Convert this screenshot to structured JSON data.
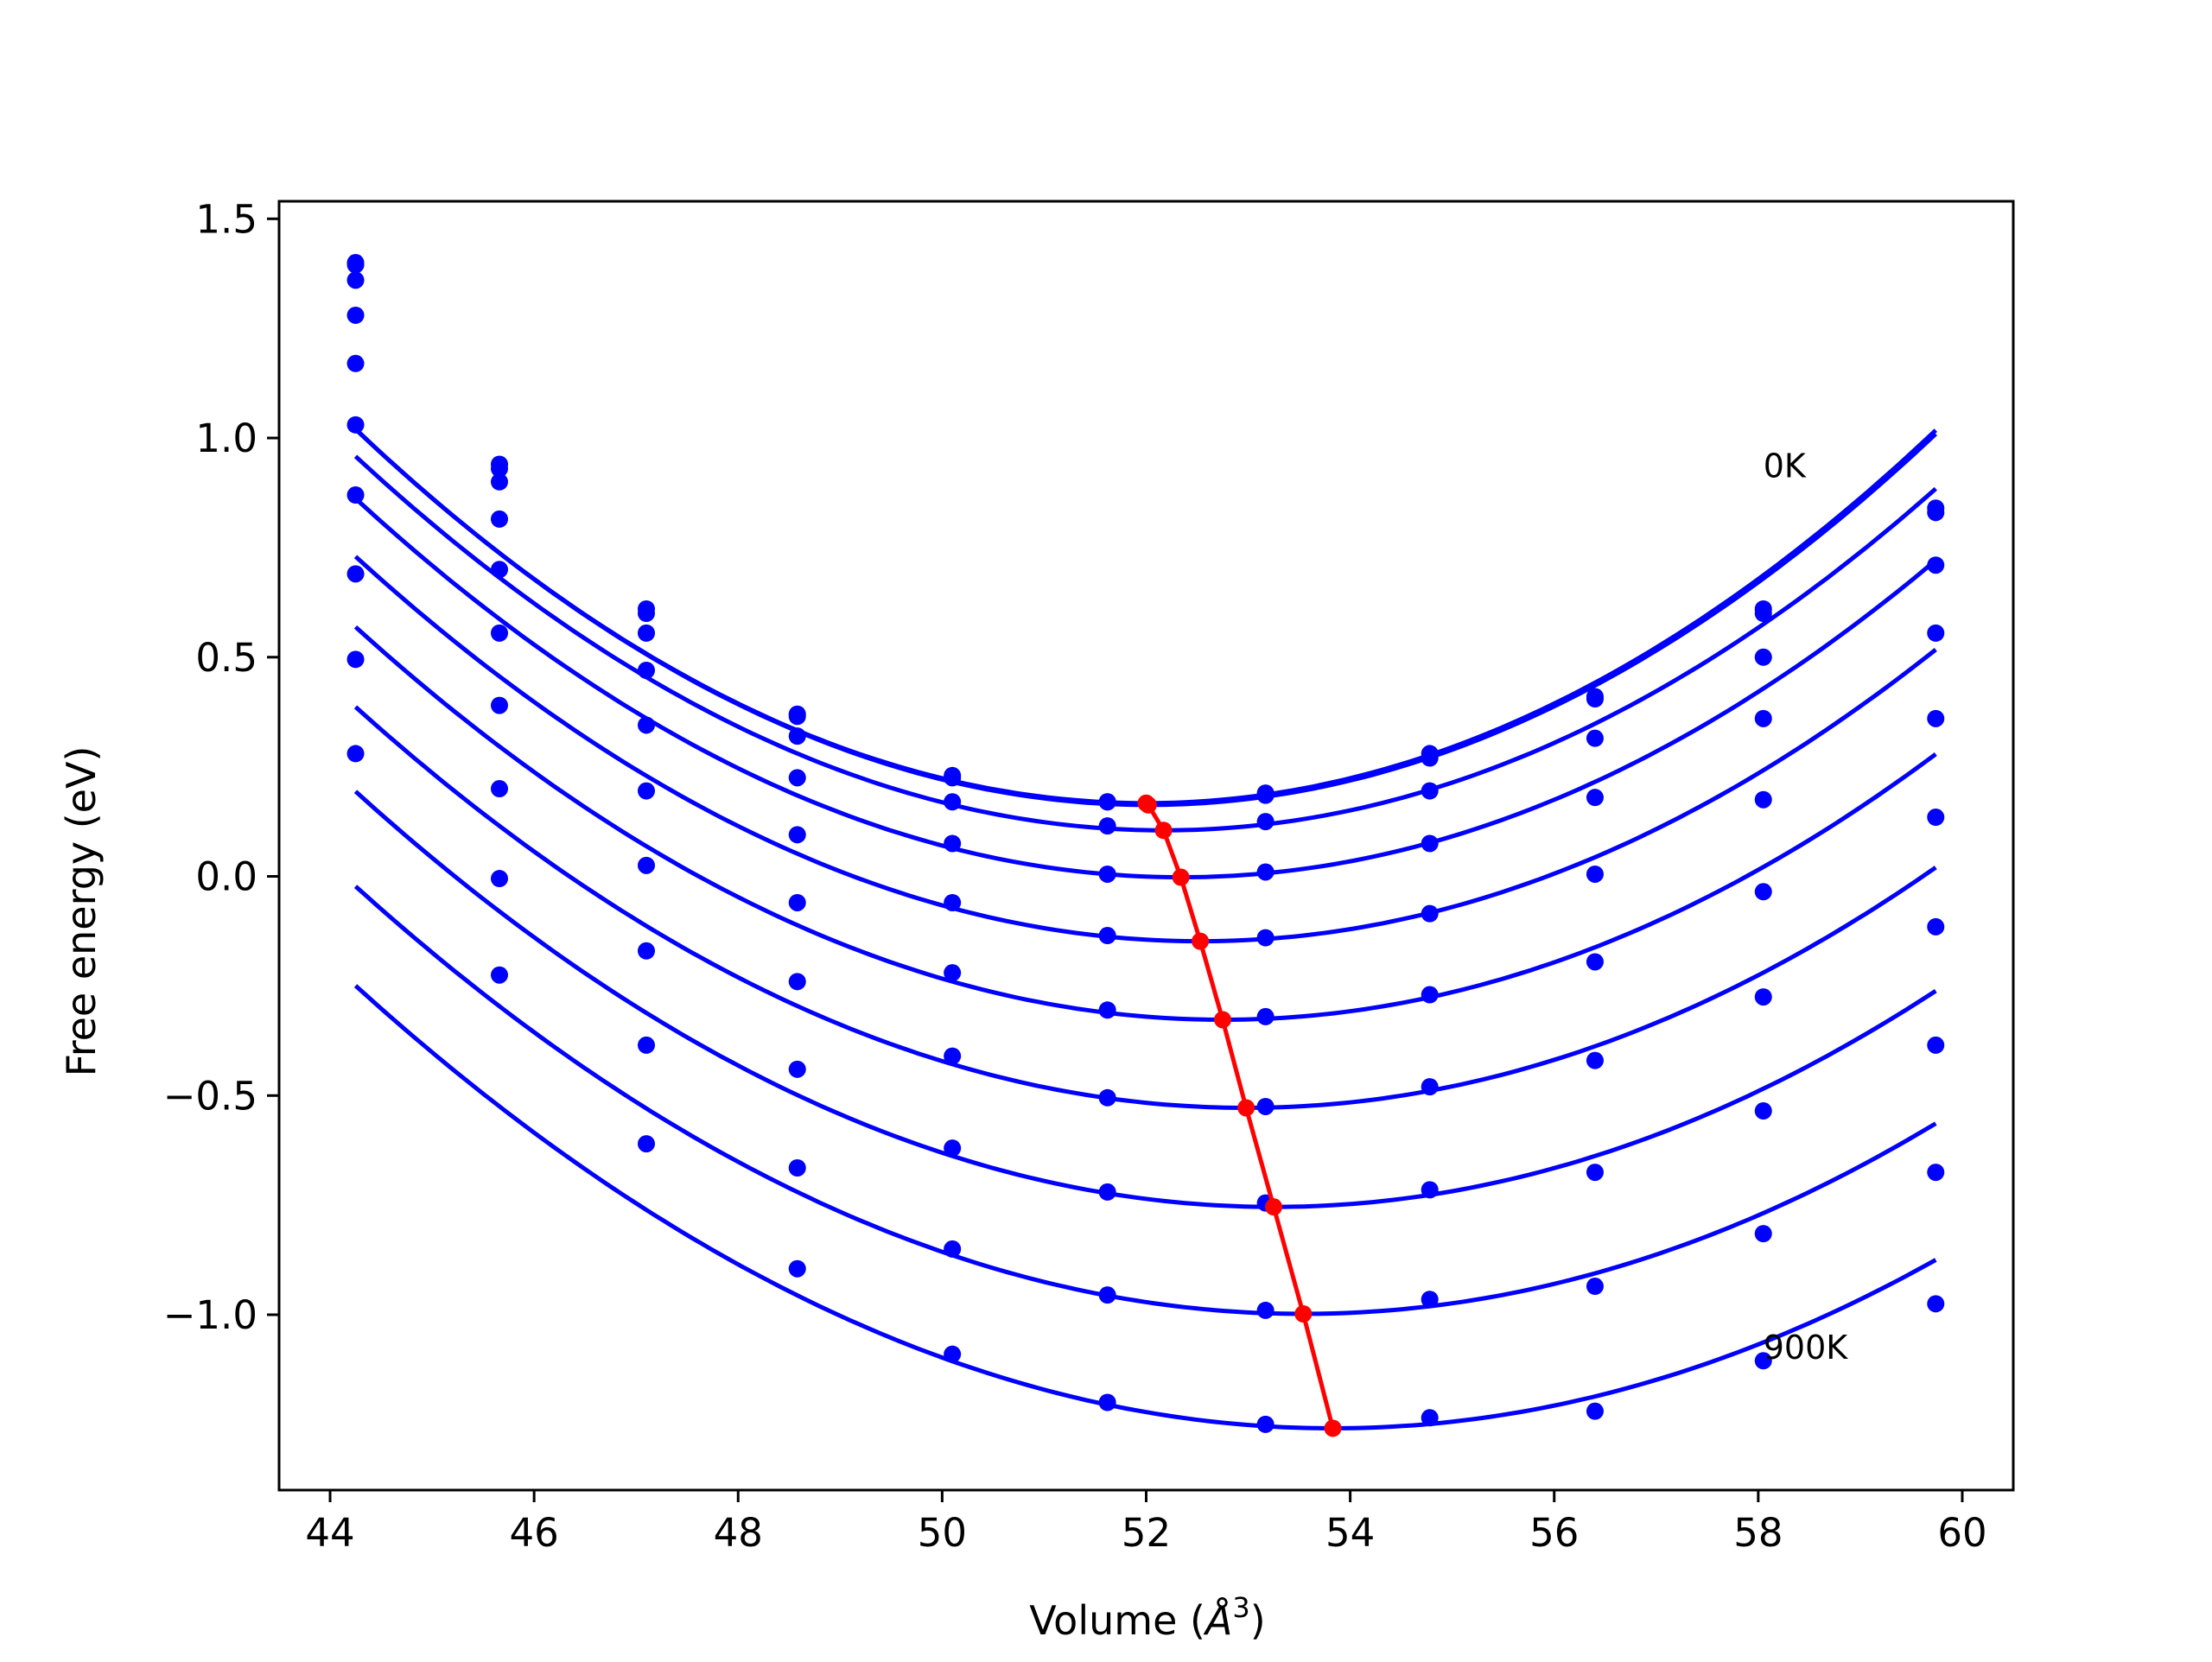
{
  "chart_data": {
    "type": "line",
    "title": "",
    "xlabel_prefix": "Volume (",
    "xlabel_unit": "Å",
    "xlabel_exp": "3",
    "xlabel_suffix": ")",
    "ylabel": "Free energy (eV)",
    "xlim": [
      43.5,
      60.5
    ],
    "ylim": [
      -1.4,
      1.54
    ],
    "xticks": [
      44,
      46,
      48,
      50,
      52,
      54,
      56,
      58,
      60
    ],
    "yticks": [
      -1.0,
      -0.5,
      0.0,
      0.5,
      1.0,
      1.5
    ],
    "xtick_labels": [
      "44",
      "46",
      "48",
      "50",
      "52",
      "54",
      "56",
      "58",
      "60"
    ],
    "ytick_labels": [
      "−1.0",
      "−0.5",
      "0.0",
      "0.5",
      "1.0",
      "1.5"
    ],
    "grid": false,
    "colors": {
      "curves": "#0000ff",
      "minima": "#ff0000",
      "axes": "#000000"
    },
    "annotations": [
      {
        "text": "0K",
        "x": 58.05,
        "y": 0.91
      },
      {
        "text": "900K",
        "x": 58.05,
        "y": -1.1
      }
    ],
    "x": [
      44.25,
      45.66,
      47.1,
      48.58,
      50.1,
      51.62,
      53.17,
      54.78,
      56.4,
      58.05,
      59.74
    ],
    "series": [
      {
        "points": [
          1.4,
          0.94,
          0.61,
          0.37,
          0.23,
          0.17,
          0.19,
          0.28,
          0.41,
          0.61,
          0.84
        ],
        "fit": {
          "a": 0.0142,
          "v0": 52.0,
          "e0": 0.167
        }
      },
      {
        "points": [
          1.395,
          0.93,
          0.6,
          0.365,
          0.225,
          0.17,
          0.185,
          0.27,
          0.405,
          0.6,
          0.83
        ],
        "fit": {
          "a": 0.0142,
          "v0": 52.02,
          "e0": 0.163
        }
      },
      {
        "points": [
          1.36,
          0.9,
          0.555,
          0.32,
          0.17,
          0.115,
          0.125,
          0.195,
          0.315,
          0.5,
          0.71
        ],
        "fit": {
          "a": 0.0136,
          "v0": 52.17,
          "e0": 0.105
        }
      },
      {
        "points": [
          1.28,
          0.815,
          0.47,
          0.225,
          0.075,
          0.005,
          0.01,
          0.075,
          0.18,
          0.36,
          0.555
        ],
        "fit": {
          "a": 0.0132,
          "v0": 52.34,
          "e0": -0.002
        }
      },
      {
        "points": [
          1.17,
          0.7,
          0.345,
          0.095,
          -0.06,
          -0.135,
          -0.14,
          -0.085,
          0.005,
          0.175,
          0.36
        ],
        "fit": {
          "a": 0.0128,
          "v0": 52.53,
          "e0": -0.148
        }
      },
      {
        "points": [
          1.03,
          0.555,
          0.195,
          -0.06,
          -0.22,
          -0.305,
          -0.32,
          -0.27,
          -0.195,
          -0.035,
          0.135
        ],
        "fit": {
          "a": 0.0124,
          "v0": 52.75,
          "e0": -0.327
        }
      },
      {
        "points": [
          0.87,
          0.39,
          0.025,
          -0.24,
          -0.41,
          -0.505,
          -0.525,
          -0.48,
          -0.42,
          -0.275,
          -0.115
        ],
        "fit": {
          "a": 0.012,
          "v0": 52.98,
          "e0": -0.528
        }
      },
      {
        "points": [
          0.69,
          0.2,
          -0.17,
          -0.44,
          -0.62,
          -0.72,
          -0.745,
          -0.715,
          -0.675,
          -0.535,
          -0.385
        ],
        "fit": {
          "a": 0.0117,
          "v0": 53.25,
          "e0": -0.754
        }
      },
      {
        "points": [
          0.495,
          -0.005,
          -0.385,
          -0.665,
          -0.85,
          -0.955,
          -0.99,
          -0.965,
          -0.935,
          -0.815,
          -0.675
        ],
        "fit": {
          "a": 0.0113,
          "v0": 53.54,
          "e0": -0.998
        }
      },
      {
        "points": [
          0.28,
          -0.225,
          -0.61,
          -0.895,
          -1.09,
          -1.2,
          -1.25,
          -1.235,
          -1.22,
          -1.105,
          -0.975
        ],
        "fit": {
          "a": 0.011,
          "v0": 53.83,
          "e0": -1.259
        }
      }
    ],
    "minima": {
      "x": [
        52.0,
        52.02,
        52.17,
        52.34,
        52.53,
        52.75,
        52.98,
        53.25,
        53.54,
        53.83
      ],
      "y": [
        0.167,
        0.163,
        0.105,
        -0.002,
        -0.148,
        -0.327,
        -0.528,
        -0.754,
        -0.998,
        -1.259
      ]
    }
  }
}
